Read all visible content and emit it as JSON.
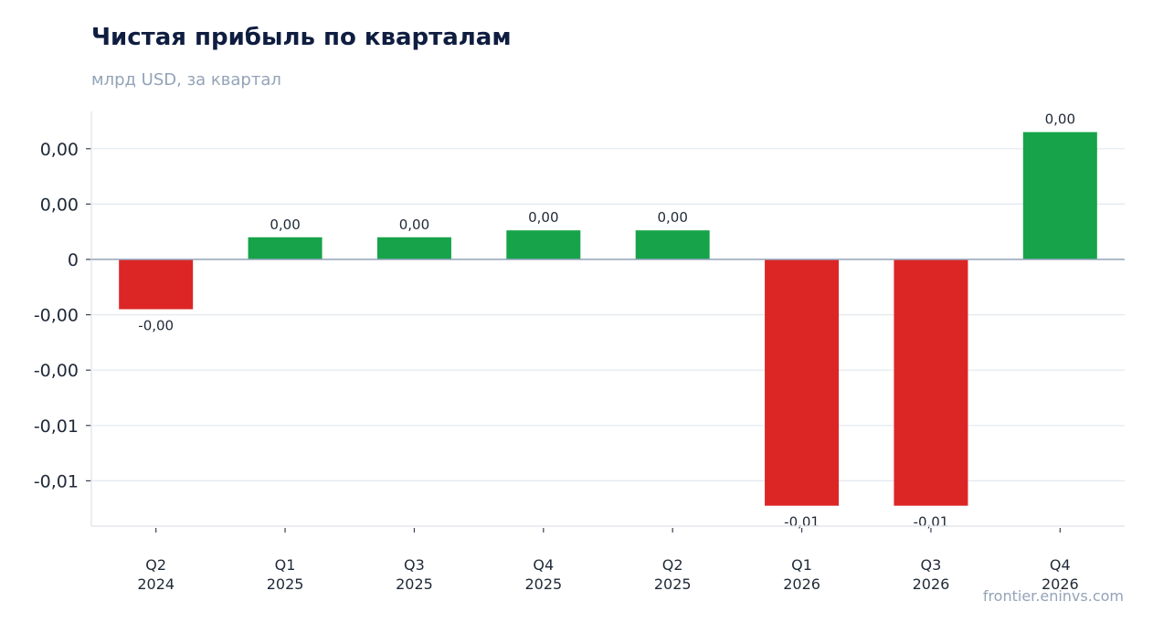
{
  "header": {
    "title": "Чистая прибыль по кварталам",
    "subtitle": "млрд USD, за квартал"
  },
  "watermark": "frontier.eninvs.com",
  "colors": {
    "positive": "#16a34a",
    "negative": "#dc2626",
    "grid": "#e2e8f0",
    "zero_line": "#94a3b8",
    "axis": "#e5e7eb"
  },
  "chart_data": {
    "type": "bar",
    "title": "Чистая прибыль по кварталам",
    "subtitle": "млрд USD, за квартал",
    "xlabel": "",
    "ylabel": "",
    "categories": [
      [
        "Q2",
        "2024"
      ],
      [
        "Q1",
        "2025"
      ],
      [
        "Q3",
        "2025"
      ],
      [
        "Q4",
        "2025"
      ],
      [
        "Q2",
        "2025"
      ],
      [
        "Q1",
        "2026"
      ],
      [
        "Q3",
        "2026"
      ],
      [
        "Q4",
        "2026"
      ]
    ],
    "values": [
      -0.0018,
      0.0008,
      0.0008,
      0.00105,
      0.00105,
      -0.0089,
      -0.0089,
      0.0046
    ],
    "data_labels": [
      "-0,00",
      "0,00",
      "0,00",
      "0,00",
      "0,00",
      "-0,01",
      "-0,01",
      "0,00"
    ],
    "yticks": [
      0.004,
      0.002,
      0,
      -0.002,
      -0.004,
      -0.006,
      -0.008
    ],
    "ytick_labels": [
      "0,00",
      "0,00",
      "0",
      "-0,00",
      "-0,00",
      "-0,01",
      "-0,01"
    ],
    "ylim": [
      -0.0096,
      0.0053
    ],
    "grid": true,
    "legend": "none"
  }
}
